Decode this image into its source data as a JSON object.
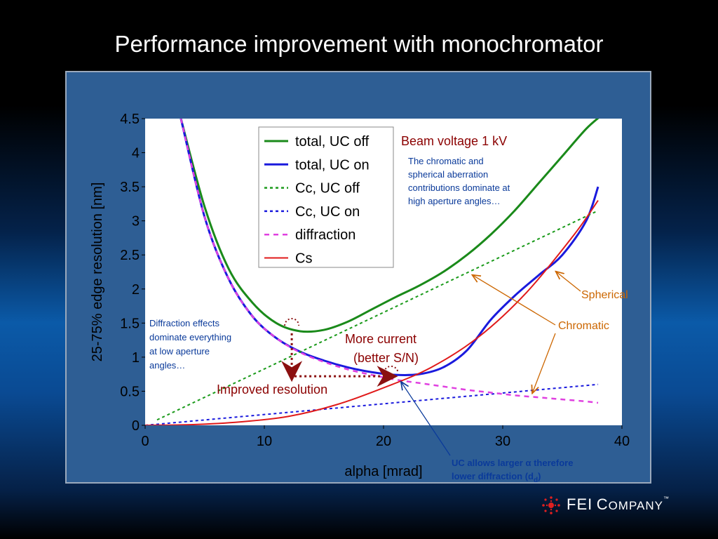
{
  "slide": {
    "title": "Performance improvement with monochromator",
    "logo": {
      "brand": "FEI",
      "word1": "C",
      "word1_rest": "OMPANY",
      "tm": "™"
    }
  },
  "chart_data": {
    "type": "line",
    "title": "",
    "xlabel": "alpha [mrad]",
    "ylabel": "25-75% edge resolution [nm]",
    "xlim": [
      0,
      40
    ],
    "ylim": [
      0,
      4.5
    ],
    "xticks": [
      "0",
      "10",
      "20",
      "30",
      "40"
    ],
    "yticks": [
      "0",
      "0.5",
      "1",
      "1.5",
      "2",
      "2.5",
      "3",
      "3.5",
      "4",
      "4.5"
    ],
    "grid": false,
    "legend_position": "top-center",
    "series": [
      {
        "name": "total, UC off",
        "color": "#1a8a1a",
        "dash": "solid",
        "x": [
          3,
          5,
          7,
          9,
          11,
          13,
          15,
          17,
          19,
          21,
          23,
          25,
          27,
          29,
          31,
          33,
          35,
          37,
          38.3
        ],
        "y": [
          4.5,
          3.2,
          2.3,
          1.8,
          1.5,
          1.38,
          1.4,
          1.52,
          1.7,
          1.88,
          2.05,
          2.25,
          2.5,
          2.8,
          3.15,
          3.55,
          3.95,
          4.35,
          4.55
        ]
      },
      {
        "name": "total, UC on",
        "color": "#1a1add",
        "dash": "solid",
        "x": [
          3,
          5,
          7,
          9,
          11,
          13,
          15,
          17,
          19,
          21,
          23,
          25,
          27,
          29,
          31,
          33,
          35,
          37,
          38
        ],
        "y": [
          4.5,
          3.05,
          2.15,
          1.6,
          1.28,
          1.08,
          0.95,
          0.85,
          0.78,
          0.74,
          0.75,
          0.85,
          1.1,
          1.55,
          1.9,
          2.2,
          2.5,
          3.0,
          3.5
        ]
      },
      {
        "name": "Cc, UC off",
        "color": "#1a9a1a",
        "dash": "dotted",
        "x": [
          1,
          38
        ],
        "y": [
          0.08,
          3.15
        ]
      },
      {
        "name": "Cc, UC on",
        "color": "#1a1add",
        "dash": "dotted",
        "x": [
          0,
          38
        ],
        "y": [
          0.0,
          0.6
        ]
      },
      {
        "name": "diffraction",
        "color": "#e040e0",
        "dash": "dashed",
        "x": [
          3,
          5,
          7,
          9,
          11,
          13,
          15,
          17,
          19,
          21,
          23,
          25,
          27,
          29,
          31,
          33,
          35,
          37,
          38
        ],
        "y": [
          4.5,
          3.05,
          2.15,
          1.6,
          1.28,
          1.07,
          0.93,
          0.82,
          0.74,
          0.67,
          0.62,
          0.57,
          0.52,
          0.48,
          0.44,
          0.41,
          0.38,
          0.35,
          0.33
        ]
      },
      {
        "name": "Cs",
        "color": "#e01a1a",
        "dash": "solid",
        "x": [
          0,
          4,
          8,
          12,
          16,
          20,
          24,
          28,
          32,
          36,
          38
        ],
        "y": [
          0.0,
          0.01,
          0.05,
          0.13,
          0.3,
          0.55,
          0.85,
          1.3,
          1.95,
          2.8,
          3.3
        ]
      }
    ],
    "annotations": {
      "beam_voltage": "Beam voltage 1 kV",
      "chromatic_spherical_note": "The chromatic and spherical aberration contributions dominate at high aperture angles…",
      "diffraction_note": "Diffraction effects dominate everything at low aperture angles…",
      "more_current_1": "More current",
      "more_current_2": "(better S/N)",
      "improved_resolution": "Improved resolution",
      "spherical": "Spherical",
      "chromatic": "Chromatic",
      "uc_note_1": "UC allows larger α therefore",
      "uc_note_2": "lower diffraction (d",
      "uc_note_sub": "d",
      "uc_note_end": ")"
    },
    "colors": {
      "panel": "#2e5e94",
      "plot_background": "#ffffff",
      "axis_text": "#000000",
      "annotation_red": "#8b0000",
      "annotation_orange": "#cc6600",
      "annotation_blue": "#0a3a9a",
      "arrow_dark_red": "#8b1010"
    }
  }
}
